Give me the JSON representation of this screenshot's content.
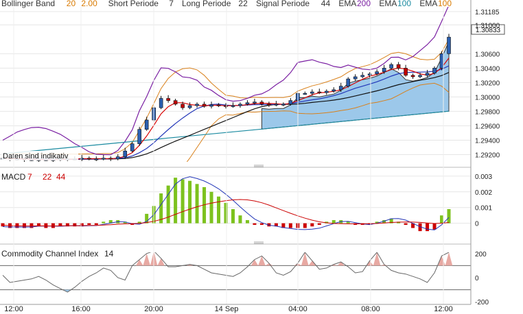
{
  "header": {
    "items": [
      {
        "label": "Bollinger Band",
        "params": [
          "20",
          "2.00"
        ],
        "colors": [
          "#d97a00",
          "#d97a00"
        ]
      },
      {
        "label": "Short Periode",
        "params": [
          "7"
        ],
        "colors": [
          "#333333"
        ]
      },
      {
        "label": "Long Periode",
        "params": [
          "22"
        ],
        "colors": [
          "#333333"
        ]
      },
      {
        "label": "Signal Periode",
        "params": [
          "44"
        ],
        "colors": [
          "#333333"
        ]
      },
      {
        "label": "EMA",
        "params": [
          "200"
        ],
        "colors": [
          "#7a1fa2"
        ]
      },
      {
        "label": "EMA",
        "params": [
          "100"
        ],
        "colors": [
          "#1a8aa0"
        ]
      },
      {
        "label": "EMA",
        "params": [
          "100"
        ],
        "colors": [
          "#d97a00"
        ]
      }
    ]
  },
  "price_panel": {
    "indicative_note": "Daten sind indikativ",
    "last_price": "1.30833",
    "y_ticks": [
      "1.31185",
      "1.31000",
      "1.30600",
      "1.30400",
      "1.30200",
      "1.30000",
      "1.29800",
      "1.29600",
      "1.29400",
      "1.29200"
    ]
  },
  "macd_panel": {
    "label": "MACD",
    "params": [
      "7",
      "22",
      "44"
    ],
    "param_colors": [
      "#cc0000",
      "#cc0000",
      "#cc0000"
    ],
    "y_ticks": [
      "0.003",
      "0.002",
      "0.001",
      "0"
    ]
  },
  "cci_panel": {
    "label": "Commodity Channel Index",
    "param": "14",
    "y_ticks": [
      "200",
      "0",
      "-200"
    ]
  },
  "time_axis": {
    "ticks": [
      "12:00",
      "16:00",
      "20:00",
      "14 Sep",
      "04:00",
      "08:00",
      "12:00"
    ]
  },
  "colors": {
    "candle_up": "#2b5fb0",
    "candle_down": "#c00000",
    "cloud_fill": "#9cc8ea",
    "macd_pos": "#7dc21e",
    "macd_neg": "#cc0000",
    "cci_fill_pos": "#e8a9a3",
    "cci_fill_neg": "#9cc8ea"
  },
  "chart_data": [
    {
      "type": "candlestick",
      "y_unit": "price",
      "ylim": [
        1.291,
        1.3125
      ],
      "x_ticks": [
        "12:00",
        "16:00",
        "20:00",
        "14 Sep",
        "04:00",
        "08:00",
        "12:00"
      ],
      "close_series_approx": [
        1.2915,
        1.2914,
        1.2914,
        1.2913,
        1.2913,
        1.2913,
        1.2913,
        1.2913,
        1.2914,
        1.2914,
        1.2914,
        1.2915,
        1.2914,
        1.2914,
        1.2915,
        1.2914,
        1.2917,
        1.2925,
        1.2935,
        1.2955,
        1.2968,
        1.2985,
        1.2998,
        1.2995,
        1.299,
        1.2985,
        1.2988,
        1.299,
        1.2987,
        1.2989,
        1.2988,
        1.2987,
        1.2988,
        1.299,
        1.2992,
        1.2993,
        1.299,
        1.2989,
        1.299,
        1.299,
        1.2995,
        1.3005,
        1.3005,
        1.3007,
        1.3006,
        1.3008,
        1.301,
        1.3015,
        1.3025,
        1.3028,
        1.303,
        1.3032,
        1.3035,
        1.304,
        1.3045,
        1.304,
        1.303,
        1.3028,
        1.303,
        1.3033,
        1.304,
        1.306,
        1.3083
      ]
    },
    {
      "type": "bar",
      "name": "MACD histogram",
      "ylim": [
        -0.0008,
        0.0033
      ],
      "values_approx": [
        -0.0002,
        -0.0003,
        -0.0003,
        -0.0003,
        -0.0003,
        -0.0002,
        -0.0003,
        -0.0003,
        -0.0002,
        -0.0002,
        -0.0002,
        -0.0002,
        -0.0001,
        -0.0001,
        0.0001,
        0.0002,
        0.0002,
        0.0001,
        -0.0001,
        0.0001,
        0.0006,
        0.0011,
        0.0019,
        0.0024,
        0.0029,
        0.0028,
        0.0027,
        0.0025,
        0.0023,
        0.002,
        0.0017,
        0.0013,
        0.0009,
        0.0005,
        0.0002,
        -0.0001,
        -0.0001,
        -0.0002,
        -0.0002,
        -0.0003,
        -0.0003,
        -0.0003,
        -0.0003,
        -0.0002,
        -0.0001,
        0.0001,
        0.0002,
        0.0002,
        0.0001,
        -0.0001,
        -0.0001,
        -0.0001,
        0.0001,
        0.0002,
        0.0003,
        0.0001,
        -0.0001,
        -0.0003,
        -0.0005,
        -0.0005,
        -0.0004,
        0.0005,
        0.0009
      ]
    },
    {
      "type": "line",
      "name": "CCI",
      "ylim": [
        -210,
        210
      ],
      "values_approx": [
        20,
        -40,
        -30,
        -20,
        -10,
        10,
        -20,
        -60,
        -90,
        -120,
        -80,
        -30,
        10,
        40,
        80,
        60,
        0,
        -20,
        100,
        150,
        200,
        220,
        160,
        90,
        90,
        100,
        110,
        100,
        70,
        40,
        30,
        20,
        10,
        40,
        90,
        150,
        180,
        120,
        40,
        20,
        50,
        120,
        210,
        140,
        70,
        80,
        110,
        130,
        90,
        40,
        50,
        140,
        210,
        110,
        60,
        40,
        30,
        10,
        -10,
        -40,
        40,
        180,
        210
      ]
    }
  ]
}
